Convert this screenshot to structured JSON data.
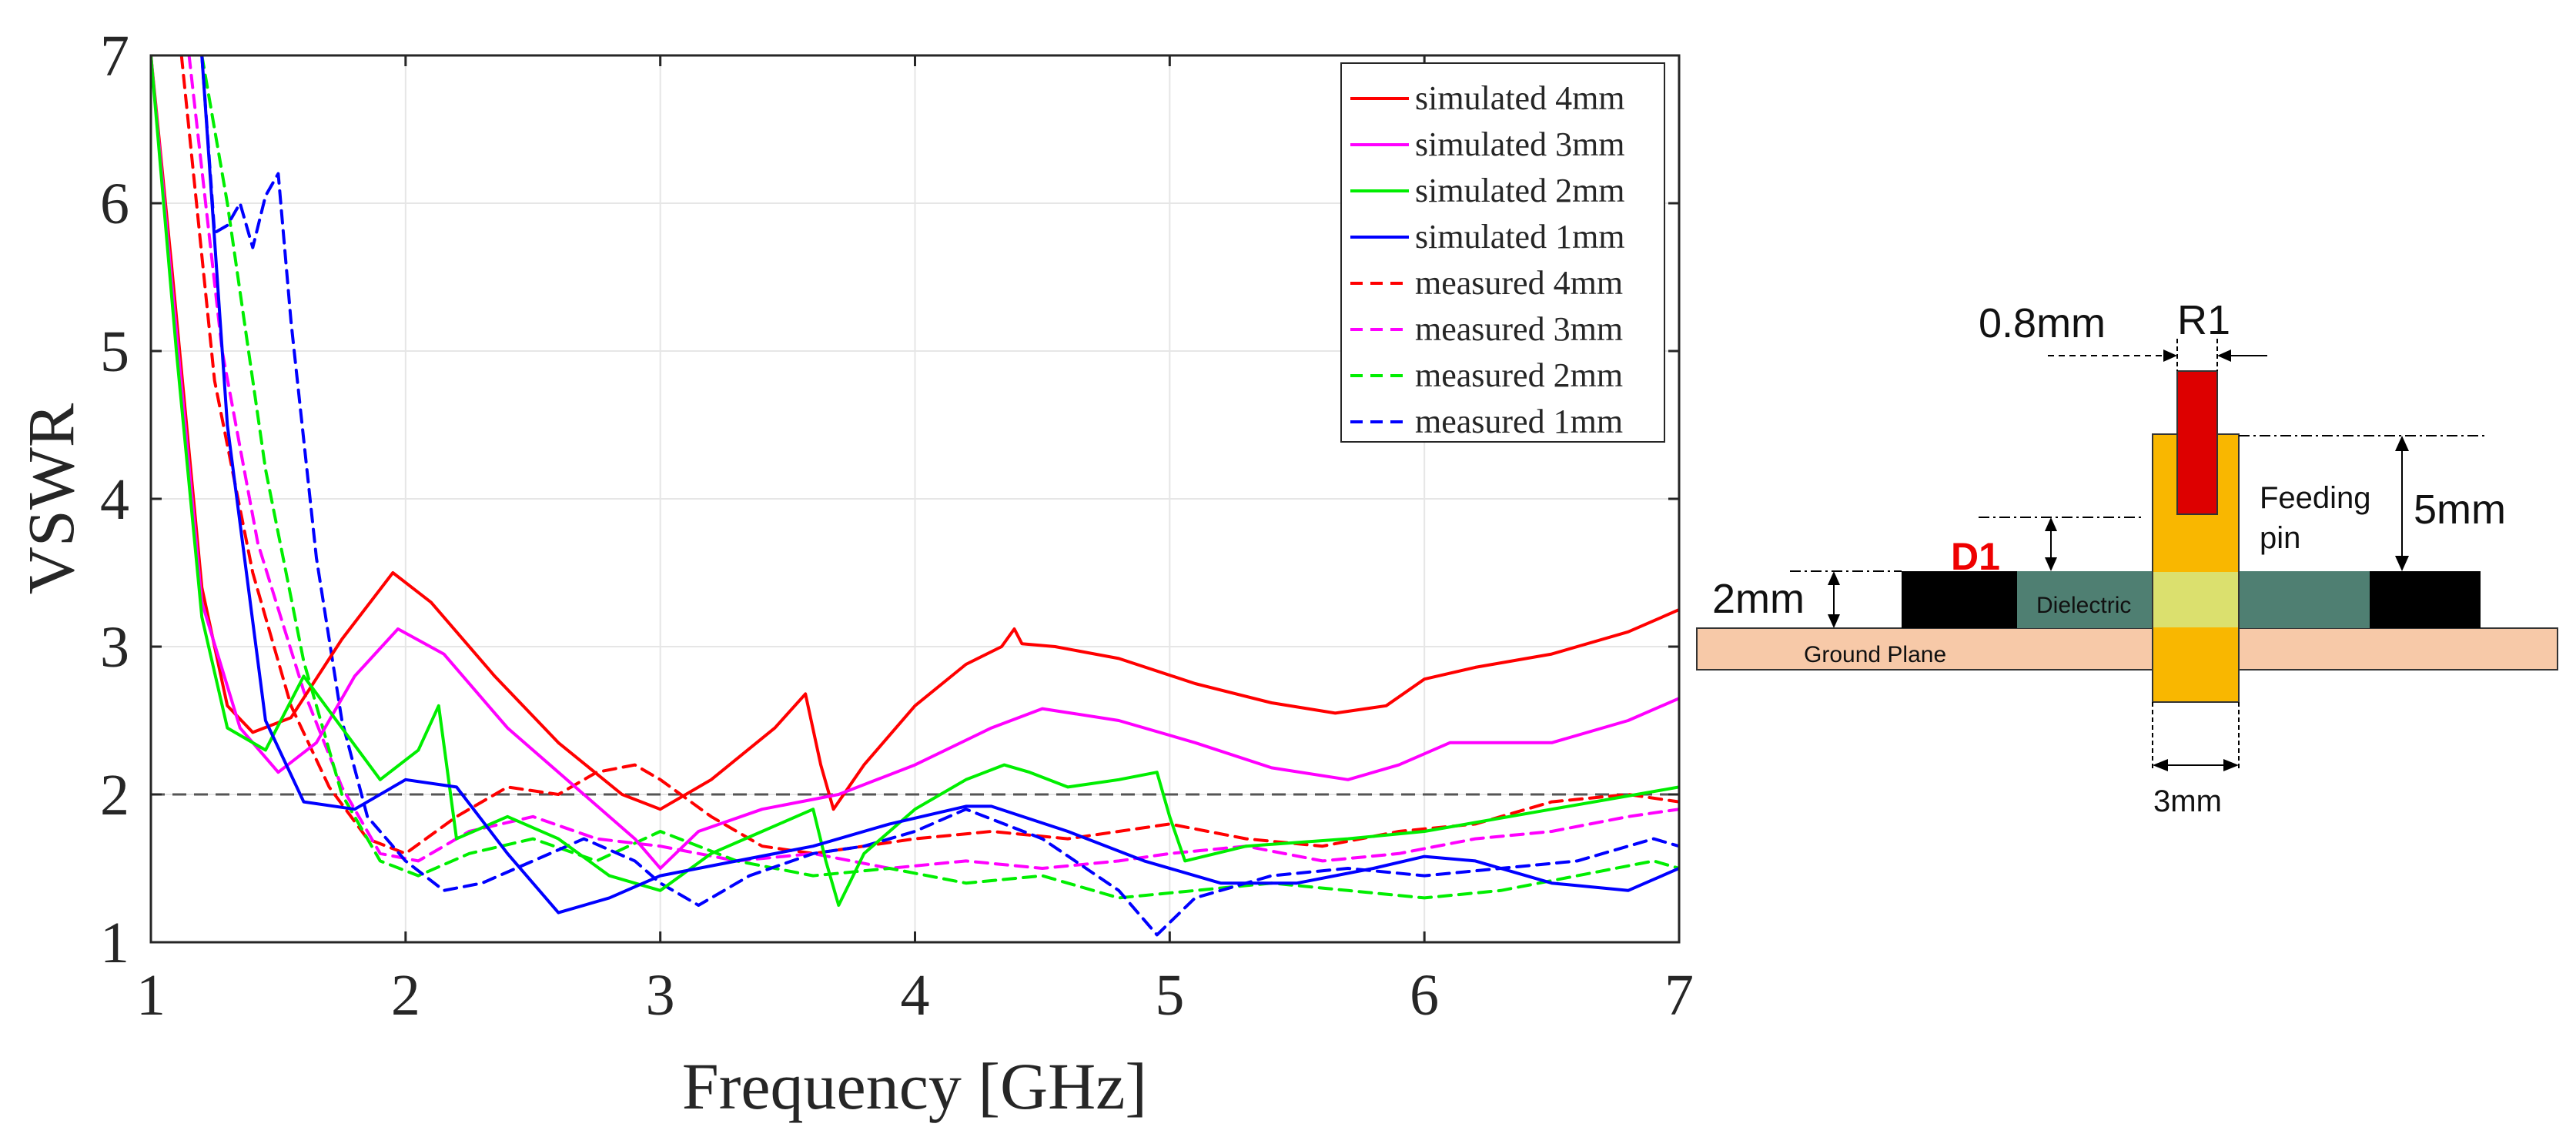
{
  "chart_data": {
    "type": "line",
    "xlabel": "Frequency [GHz]",
    "ylabel": "VSWR",
    "xlim": [
      1,
      7
    ],
    "ylim": [
      1,
      7
    ],
    "xticks": [
      1,
      2,
      3,
      4,
      5,
      6,
      7
    ],
    "yticks": [
      1,
      2,
      3,
      4,
      5,
      6,
      7
    ],
    "grid": true,
    "legend_position": "top-right",
    "reference_line": {
      "y": 2,
      "style": "dashed",
      "color": "#555555"
    },
    "series": [
      {
        "name": "simulated 4mm",
        "color": "#ff0000",
        "style": "solid",
        "x": [
          1.0,
          1.08,
          1.2,
          1.3,
          1.4,
          1.55,
          1.75,
          1.95,
          2.1,
          2.35,
          2.6,
          2.85,
          3.0,
          3.2,
          3.45,
          3.57,
          3.63,
          3.68,
          3.8,
          4.0,
          4.2,
          4.34,
          4.39,
          4.42,
          4.55,
          4.8,
          5.1,
          5.4,
          5.65,
          5.85,
          6.0,
          6.2,
          6.5,
          6.8,
          7.0
        ],
        "y": [
          7.0,
          5.6,
          3.4,
          2.6,
          2.42,
          2.52,
          3.05,
          3.5,
          3.3,
          2.8,
          2.35,
          2.0,
          1.9,
          2.1,
          2.45,
          2.68,
          2.2,
          1.9,
          2.2,
          2.6,
          2.88,
          3.0,
          3.12,
          3.02,
          3.0,
          2.92,
          2.75,
          2.62,
          2.55,
          2.6,
          2.78,
          2.86,
          2.95,
          3.1,
          3.25
        ]
      },
      {
        "name": "simulated 3mm",
        "color": "#ff00ff",
        "style": "solid",
        "x": [
          1.0,
          1.08,
          1.2,
          1.35,
          1.5,
          1.65,
          1.8,
          1.97,
          2.15,
          2.4,
          2.7,
          2.9,
          3.0,
          3.15,
          3.4,
          3.7,
          4.0,
          4.3,
          4.5,
          4.8,
          5.1,
          5.4,
          5.7,
          5.9,
          6.1,
          6.5,
          6.8,
          7.0
        ],
        "y": [
          7.0,
          5.5,
          3.3,
          2.45,
          2.15,
          2.35,
          2.8,
          3.12,
          2.95,
          2.45,
          2.0,
          1.7,
          1.5,
          1.75,
          1.9,
          2.0,
          2.2,
          2.45,
          2.58,
          2.5,
          2.35,
          2.18,
          2.1,
          2.2,
          2.35,
          2.35,
          2.5,
          2.65
        ]
      },
      {
        "name": "simulated 2mm",
        "color": "#00ee00",
        "style": "solid",
        "x": [
          1.0,
          1.1,
          1.2,
          1.3,
          1.45,
          1.6,
          1.75,
          1.9,
          2.05,
          2.13,
          2.2,
          2.4,
          2.6,
          2.8,
          3.0,
          3.2,
          3.4,
          3.6,
          3.65,
          3.7,
          3.8,
          4.0,
          4.2,
          4.35,
          4.45,
          4.6,
          4.8,
          4.95,
          5.0,
          5.06,
          5.3,
          5.7,
          6.0,
          6.5,
          7.0
        ],
        "y": [
          7.0,
          5.0,
          3.2,
          2.45,
          2.3,
          2.8,
          2.45,
          2.1,
          2.3,
          2.6,
          1.7,
          1.85,
          1.7,
          1.45,
          1.35,
          1.6,
          1.75,
          1.9,
          1.55,
          1.25,
          1.6,
          1.9,
          2.1,
          2.2,
          2.15,
          2.05,
          2.1,
          2.15,
          1.85,
          1.55,
          1.65,
          1.7,
          1.75,
          1.9,
          2.05
        ]
      },
      {
        "name": "simulated 1mm",
        "color": "#0000ff",
        "style": "solid",
        "x": [
          1.2,
          1.3,
          1.45,
          1.6,
          1.8,
          2.0,
          2.2,
          2.4,
          2.6,
          2.8,
          3.0,
          3.3,
          3.6,
          3.9,
          4.2,
          4.3,
          4.6,
          4.9,
          5.2,
          5.5,
          5.8,
          6.0,
          6.2,
          6.5,
          6.8,
          7.0
        ],
        "y": [
          7.0,
          4.5,
          2.5,
          1.95,
          1.9,
          2.1,
          2.05,
          1.6,
          1.2,
          1.3,
          1.45,
          1.55,
          1.65,
          1.8,
          1.92,
          1.92,
          1.75,
          1.55,
          1.4,
          1.4,
          1.5,
          1.58,
          1.55,
          1.4,
          1.35,
          1.5
        ]
      },
      {
        "name": "measured 4mm",
        "color": "#ff0000",
        "style": "dashed",
        "x": [
          1.12,
          1.25,
          1.4,
          1.55,
          1.7,
          1.85,
          2.0,
          2.2,
          2.4,
          2.6,
          2.75,
          2.9,
          3.0,
          3.2,
          3.4,
          3.6,
          3.8,
          4.0,
          4.3,
          4.6,
          5.0,
          5.3,
          5.6,
          5.9,
          6.2,
          6.5,
          6.8,
          7.0
        ],
        "y": [
          7.0,
          4.8,
          3.5,
          2.6,
          2.05,
          1.7,
          1.6,
          1.85,
          2.05,
          2.0,
          2.15,
          2.2,
          2.1,
          1.85,
          1.65,
          1.6,
          1.65,
          1.7,
          1.75,
          1.7,
          1.8,
          1.7,
          1.65,
          1.75,
          1.8,
          1.95,
          2.0,
          1.95
        ]
      },
      {
        "name": "measured 3mm",
        "color": "#ff00ff",
        "style": "dashed",
        "x": [
          1.15,
          1.28,
          1.42,
          1.6,
          1.75,
          1.9,
          2.05,
          2.25,
          2.5,
          2.75,
          3.0,
          3.3,
          3.6,
          3.9,
          4.2,
          4.5,
          4.8,
          5.0,
          5.3,
          5.6,
          5.9,
          6.2,
          6.5,
          6.8,
          7.0
        ],
        "y": [
          7.0,
          5.0,
          3.7,
          2.7,
          2.05,
          1.6,
          1.55,
          1.75,
          1.85,
          1.7,
          1.65,
          1.55,
          1.6,
          1.5,
          1.55,
          1.5,
          1.55,
          1.6,
          1.65,
          1.55,
          1.6,
          1.7,
          1.75,
          1.85,
          1.9
        ]
      },
      {
        "name": "measured 2mm",
        "color": "#00ee00",
        "style": "dashed",
        "x": [
          1.2,
          1.3,
          1.45,
          1.6,
          1.75,
          1.9,
          2.05,
          2.25,
          2.5,
          2.75,
          3.0,
          3.3,
          3.6,
          3.9,
          4.2,
          4.5,
          4.8,
          5.1,
          5.4,
          5.7,
          6.0,
          6.3,
          6.6,
          6.9,
          7.0
        ],
        "y": [
          7.0,
          6.0,
          4.2,
          2.9,
          2.0,
          1.55,
          1.45,
          1.6,
          1.7,
          1.55,
          1.75,
          1.55,
          1.45,
          1.5,
          1.4,
          1.45,
          1.3,
          1.35,
          1.4,
          1.35,
          1.3,
          1.35,
          1.45,
          1.55,
          1.5
        ]
      },
      {
        "name": "measured 1mm",
        "color": "#0000ff",
        "style": "dashed",
        "x": [
          1.2,
          1.25,
          1.3,
          1.35,
          1.4,
          1.45,
          1.5,
          1.55,
          1.65,
          1.75,
          1.85,
          2.0,
          2.15,
          2.3,
          2.5,
          2.7,
          2.9,
          3.0,
          3.15,
          3.35,
          3.6,
          3.8,
          4.0,
          4.2,
          4.5,
          4.8,
          4.95,
          5.1,
          5.4,
          5.7,
          6.0,
          6.3,
          6.6,
          6.9,
          7.0
        ],
        "y": [
          7.0,
          5.8,
          5.85,
          6.0,
          5.7,
          6.05,
          6.2,
          5.2,
          3.6,
          2.5,
          1.85,
          1.55,
          1.35,
          1.4,
          1.55,
          1.7,
          1.55,
          1.4,
          1.25,
          1.45,
          1.6,
          1.65,
          1.75,
          1.9,
          1.7,
          1.35,
          1.05,
          1.3,
          1.45,
          1.5,
          1.45,
          1.5,
          1.55,
          1.7,
          1.65
        ]
      }
    ]
  },
  "diagram": {
    "label_08mm": "0.8mm",
    "label_r1": "R1",
    "label_feeding": "Feeding",
    "label_pin": "pin",
    "label_5mm": "5mm",
    "label_d1": "D1",
    "label_2mm": "2mm",
    "label_dielectric": "Dielectric",
    "label_ground": "Ground Plane",
    "label_3mm": "3mm",
    "colors": {
      "pin": "#f9b700",
      "r1": "#dd0000",
      "dielectric": "#4f7f72",
      "pin_in_dielectric": "#dbe06e",
      "metal": "#000000",
      "ground": "#f7c9a8",
      "d1_text": "#ee0000"
    }
  }
}
